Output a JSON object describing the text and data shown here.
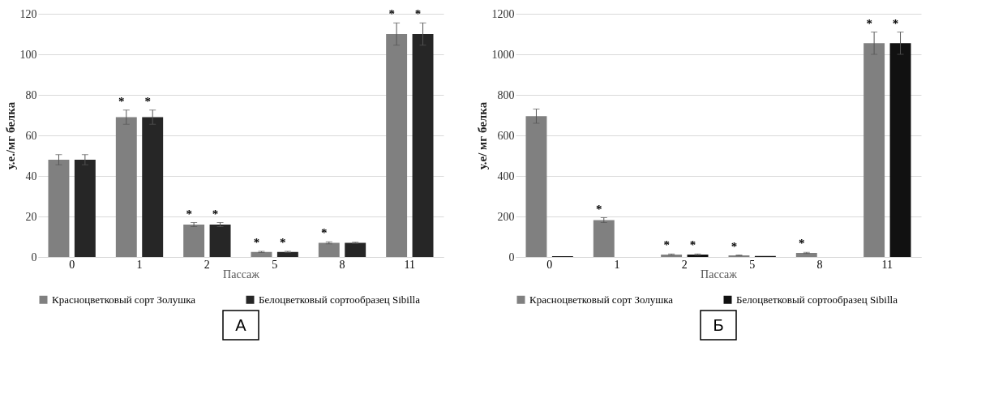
{
  "chart_data": [
    {
      "type": "bar",
      "xlabel": "Пассаж",
      "ylabel": "у.е./мг белка",
      "categories": [
        "0",
        "1",
        "2",
        "5",
        "8",
        "11"
      ],
      "series": [
        {
          "name": "Красноцветковый сорт Золушка",
          "color": "#808080",
          "values": [
            48,
            69,
            16,
            2.5,
            7,
            110
          ],
          "errors": [
            2.5,
            3.5,
            1,
            0.3,
            0.5,
            5.5
          ]
        },
        {
          "name": "Белоцветковый сортообразец Sibilla",
          "color": "#262626",
          "values": [
            48,
            69,
            16,
            2.5,
            7,
            110
          ],
          "errors": [
            2.5,
            3.5,
            1,
            0.3,
            0.3,
            5.5
          ]
        }
      ],
      "ylim": [
        0,
        120
      ],
      "yticks": [
        0,
        20,
        40,
        60,
        80,
        100,
        120
      ],
      "grid": "y",
      "legend": "bottom",
      "annotations": [
        {
          "text": "*",
          "x": "1",
          "y": 69
        },
        {
          "text": "*",
          "x": "1",
          "y": 69
        },
        {
          "text": "*",
          "x": "2",
          "y": 16
        },
        {
          "text": "*",
          "x": "2",
          "y": 16
        },
        {
          "text": "*",
          "x": "5",
          "y": 2.5
        },
        {
          "text": "*",
          "x": "5",
          "y": 2.5
        },
        {
          "text": "*",
          "x": "8",
          "y": 7
        },
        {
          "text": "*",
          "x": "11",
          "y": 110
        },
        {
          "text": "*",
          "x": "11",
          "y": 110
        },
        "А"
      ]
    },
    {
      "type": "bar",
      "xlabel": "Пассаж",
      "ylabel": "у.е/ мг белка",
      "categories": [
        "0",
        "1",
        "2",
        "5",
        "8",
        "11"
      ],
      "series": [
        {
          "name": "Красноцветковый сорт Золушка",
          "color": "#808080",
          "values": [
            695,
            182,
            12,
            8,
            20,
            1055
          ],
          "errors": [
            35,
            12,
            3,
            2,
            3,
            55
          ]
        },
        {
          "name": "Белоцветковый сортообразец Sibilla",
          "color": "#111111",
          "values": [
            4,
            null,
            12,
            5,
            null,
            1055
          ],
          "errors": [
            null,
            null,
            3,
            null,
            null,
            55
          ]
        }
      ],
      "ylim": [
        0,
        1200
      ],
      "yticks": [
        0,
        200,
        400,
        600,
        800,
        {
          "value": 1000,
          "label": "1000"
        },
        {
          "value": 1200,
          "label": "1200"
        }
      ],
      "grid": "y",
      "legend": "bottom",
      "annotations": [
        {
          "text": "*",
          "x": "1",
          "y": 182
        },
        {
          "text": "*",
          "x": "2",
          "y": 12
        },
        {
          "text": "*",
          "x": "2",
          "y": 12
        },
        {
          "text": "*",
          "x": "5",
          "y": 8
        },
        {
          "text": "*",
          "x": "8",
          "y": 20
        },
        {
          "text": "*",
          "x": "11",
          "y": 1055
        },
        {
          "text": "*",
          "x": "11",
          "y": 1055
        },
        "Б"
      ]
    }
  ]
}
